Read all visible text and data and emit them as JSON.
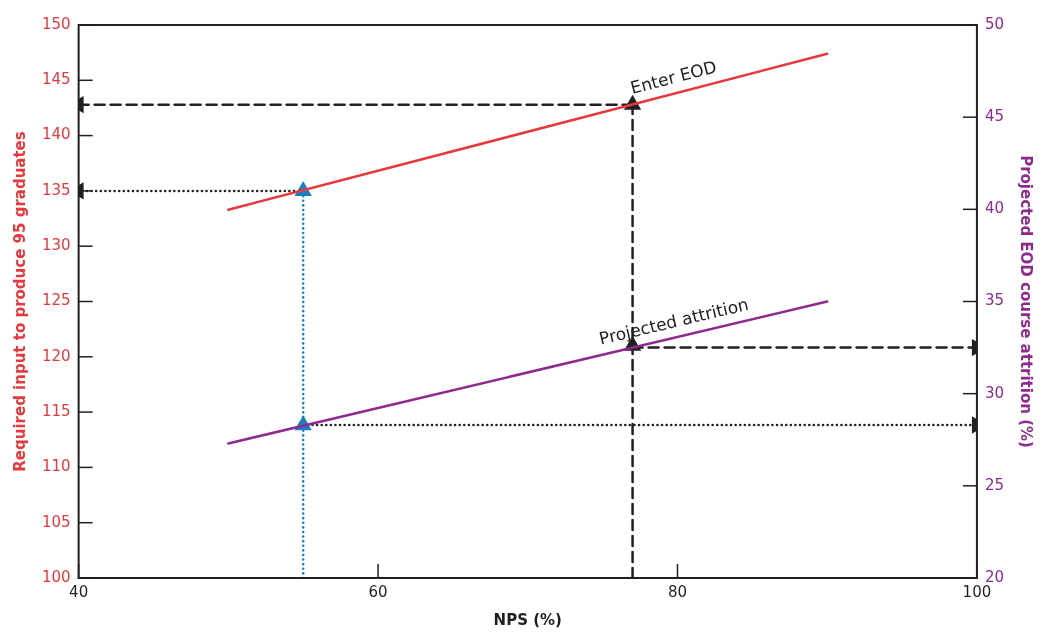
{
  "chart_data": {
    "type": "line",
    "xlabel": "NPS (%)",
    "ylabel": "Required input to produce 95 graduates",
    "y2label": "Projected EOD course attrition (%)",
    "xlim": [
      40,
      100
    ],
    "xticks": [
      40,
      60,
      80,
      100
    ],
    "ylim": [
      100,
      150
    ],
    "yticks": [
      100,
      105,
      110,
      115,
      120,
      125,
      130,
      135,
      140,
      145,
      150
    ],
    "y2lim": [
      20,
      50
    ],
    "y2ticks": [
      20,
      25,
      30,
      35,
      40,
      45,
      50
    ],
    "grid": false,
    "legend": false,
    "marker": "none",
    "series": [
      {
        "name": "Enter EOD",
        "color": "#e8383d",
        "x": [
          50,
          90
        ],
        "values": [
          133.3,
          147.4
        ]
      },
      {
        "name": "Projected attrition",
        "color": "#8e2a8e",
        "axis": "y2",
        "x": [
          50,
          90
        ],
        "values": [
          27.3,
          35.0
        ]
      },
      {
        "color": "#1a7fc1",
        "line_style": "dotted",
        "marker": "triangle",
        "x": [
          55,
          55,
          55
        ],
        "values": [
          100,
          113.8,
          135
        ]
      },
      {
        "color": "#231f20",
        "line_style": "dotted",
        "marker": "triangle",
        "x": [
          55,
          40
        ],
        "values": [
          135,
          135
        ]
      },
      {
        "color": "#231f20",
        "line_style": "dotted",
        "marker": "triangle",
        "axis": "y2",
        "x": [
          55,
          100
        ],
        "values": [
          28.3,
          28.3
        ]
      },
      {
        "color": "#231f20",
        "line_style": "dashed",
        "marker": "triangle",
        "x": [
          77,
          77,
          77
        ],
        "values": [
          100,
          121,
          142.8
        ]
      },
      {
        "color": "#231f20",
        "line_style": "dashed",
        "marker": "triangle",
        "x": [
          77,
          40
        ],
        "values": [
          142.8,
          142.8
        ]
      },
      {
        "color": "#231f20",
        "line_style": "dashed",
        "marker": "triangle",
        "axis": "y2",
        "x": [
          77,
          100
        ],
        "values": [
          32.5,
          32.5
        ]
      }
    ]
  }
}
